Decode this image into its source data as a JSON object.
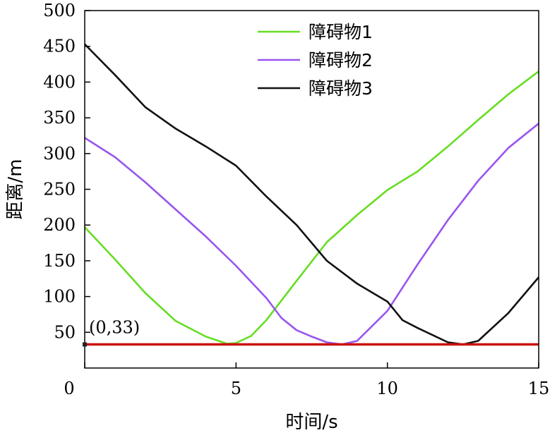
{
  "chart_data": {
    "type": "line",
    "xlabel": "时间/s",
    "ylabel": "距离/m",
    "xlim": [
      0,
      15
    ],
    "ylim": [
      0,
      500
    ],
    "x_ticks": [
      0,
      5,
      10,
      15
    ],
    "y_ticks": [
      50,
      100,
      150,
      200,
      250,
      300,
      350,
      400,
      450,
      500
    ],
    "legend_position": "top-center",
    "series": [
      {
        "name": "障碍物1",
        "color": "#66dd22",
        "x": [
          0,
          1,
          2,
          3,
          4,
          4.7,
          5,
          5.5,
          6,
          7,
          8,
          9,
          10,
          11,
          12,
          13,
          14,
          15
        ],
        "y": [
          197,
          152,
          105,
          66,
          44,
          34,
          35,
          45,
          67,
          122,
          176,
          214,
          249,
          275,
          310,
          347,
          383,
          415
        ]
      },
      {
        "name": "障碍物2",
        "color": "#9955ee",
        "x": [
          0,
          1,
          2,
          3,
          4,
          5,
          6,
          6.5,
          7,
          7.5,
          8,
          8.5,
          9,
          10,
          11,
          12,
          13,
          14,
          15
        ],
        "y": [
          322,
          295,
          260,
          222,
          184,
          143,
          98,
          70,
          53,
          44,
          36,
          33,
          38,
          80,
          145,
          207,
          262,
          308,
          342
        ]
      },
      {
        "name": "障碍物3",
        "color": "#111111",
        "x": [
          0,
          1,
          2,
          3,
          4,
          5,
          6,
          7,
          8,
          9,
          10,
          10.5,
          11,
          12,
          12.5,
          13,
          14,
          15
        ],
        "y": [
          453,
          410,
          365,
          335,
          310,
          283,
          240,
          200,
          150,
          118,
          93,
          67,
          56,
          36,
          33,
          38,
          77,
          127
        ]
      },
      {
        "color": "#cc1111",
        "x": [
          0,
          15
        ],
        "y": [
          33,
          33
        ]
      }
    ],
    "annotations": [
      {
        "text": "(0,33)",
        "x": 0,
        "y": 33
      }
    ]
  }
}
